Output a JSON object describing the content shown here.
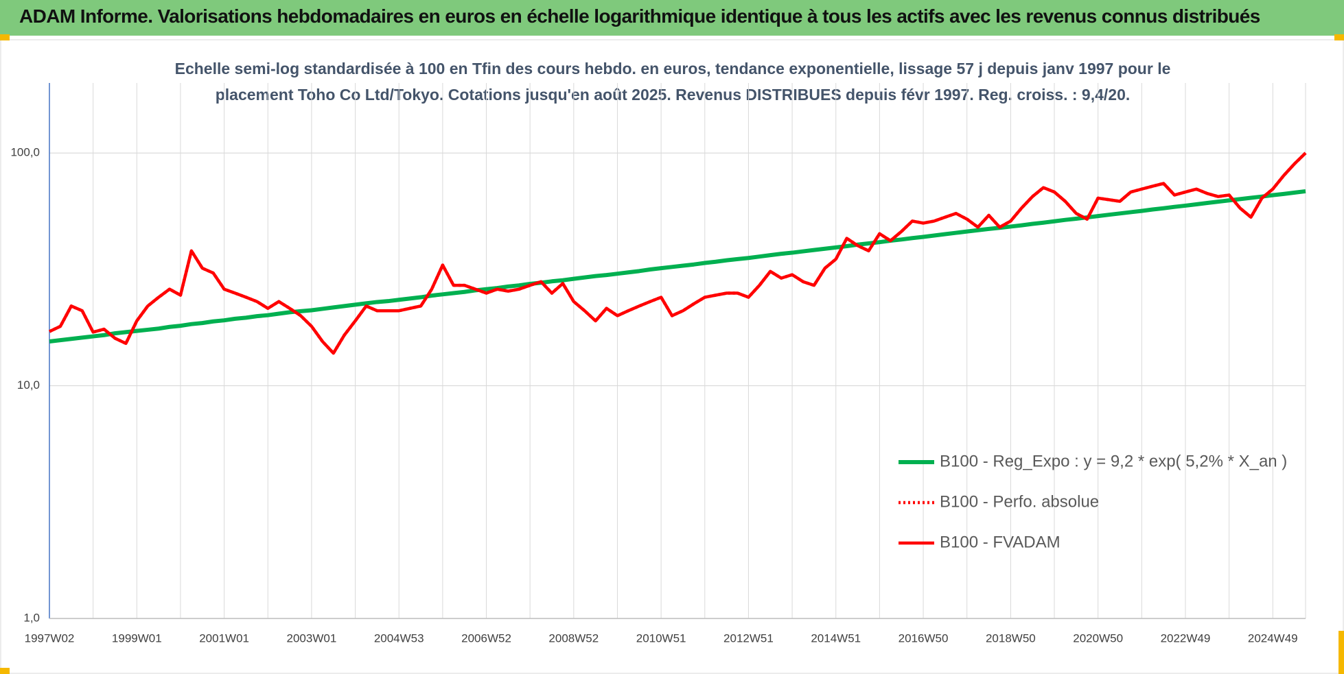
{
  "header": {
    "title": "ADAM Informe. Valorisations hebdomadaires en euros en échelle logarithmique identique à tous les actifs avec les revenus connus distribués"
  },
  "chart_data": {
    "type": "line",
    "subtitle": [
      "Echelle semi-log standardisée à 100 en Tfin des cours hebdo. en euros, tendance exponentielle, lissage 57 j depuis janv 1997 pour le",
      "placement Toho Co Ltd/Tokyo. Cotations jusqu'en août 2025. Revenus DISTRIBUES depuis févr 1997. Reg. croiss. : 9,4/20."
    ],
    "categories": [
      "1997W02",
      null,
      null,
      null,
      null,
      null,
      null,
      null,
      "1999W01",
      null,
      null,
      null,
      null,
      null,
      null,
      null,
      "2001W01",
      null,
      null,
      null,
      null,
      null,
      null,
      null,
      "2003W01",
      null,
      null,
      null,
      null,
      null,
      null,
      null,
      "2004W53",
      null,
      null,
      null,
      null,
      null,
      null,
      null,
      "2006W52",
      null,
      null,
      null,
      null,
      null,
      null,
      null,
      "2008W52",
      null,
      null,
      null,
      null,
      null,
      null,
      null,
      "2010W51",
      null,
      null,
      null,
      null,
      null,
      null,
      null,
      "2012W51",
      null,
      null,
      null,
      null,
      null,
      null,
      null,
      "2014W51",
      null,
      null,
      null,
      null,
      null,
      null,
      null,
      "2016W50",
      null,
      null,
      null,
      null,
      null,
      null,
      null,
      "2018W50",
      null,
      null,
      null,
      null,
      null,
      null,
      null,
      "2020W50",
      null,
      null,
      null,
      null,
      null,
      null,
      null,
      "2022W49",
      null,
      null,
      null,
      null,
      null,
      null,
      null,
      "2024W49",
      null,
      null,
      null
    ],
    "series": [
      {
        "name": "B100 - Reg_Expo : y = 9,2 * exp( 5,2% *  X_an )",
        "color": "#00b050",
        "dash": "solid",
        "values": [
          15.5,
          15.7,
          15.9,
          16.1,
          16.3,
          16.5,
          16.8,
          17.0,
          17.2,
          17.4,
          17.6,
          17.9,
          18.1,
          18.4,
          18.6,
          18.9,
          19.1,
          19.4,
          19.6,
          19.9,
          20.1,
          20.4,
          20.7,
          20.9,
          21.1,
          21.4,
          21.7,
          22.0,
          22.3,
          22.6,
          22.9,
          23.1,
          23.4,
          23.7,
          24.0,
          24.4,
          24.7,
          25.0,
          25.3,
          25.7,
          26.0,
          26.3,
          26.7,
          27.0,
          27.4,
          27.7,
          28.1,
          28.4,
          28.8,
          29.2,
          29.6,
          29.9,
          30.3,
          30.7,
          31.1,
          31.6,
          32.0,
          32.4,
          32.8,
          33.2,
          33.7,
          34.1,
          34.6,
          35.0,
          35.4,
          35.9,
          36.4,
          36.9,
          37.3,
          37.8,
          38.3,
          38.8,
          39.3,
          39.8,
          40.4,
          40.9,
          41.4,
          42.0,
          42.5,
          43.1,
          43.6,
          44.2,
          44.8,
          45.4,
          46.0,
          46.6,
          47.2,
          47.7,
          48.3,
          48.9,
          49.6,
          50.2,
          50.9,
          51.6,
          52.2,
          52.9,
          53.6,
          54.3,
          55.0,
          55.7,
          56.4,
          57.2,
          57.9,
          58.7,
          59.4,
          60.2,
          61.0,
          61.8,
          62.6,
          63.4,
          64.2,
          65.0,
          65.9,
          66.7,
          67.6,
          68.5
        ]
      },
      {
        "name": "B100 - Perfo. absolue",
        "color": "#ff0000",
        "dash": "dotted",
        "values": [
          17.1,
          18,
          22,
          21,
          17,
          17.5,
          16,
          15.2,
          19,
          22,
          24,
          26,
          24.5,
          38,
          32,
          30.5,
          26,
          25,
          24,
          23,
          21.5,
          23,
          21.5,
          20,
          18,
          15.5,
          13.8,
          16.5,
          19,
          22,
          21,
          21,
          21,
          21.5,
          22,
          26,
          33,
          27,
          27,
          26,
          25,
          26,
          25.5,
          26,
          27,
          28,
          25,
          27.5,
          23,
          21,
          19,
          21.5,
          20,
          21,
          22,
          23,
          24,
          20,
          21,
          22.5,
          24,
          24.5,
          25,
          25,
          24,
          27,
          31,
          29,
          30,
          28,
          27,
          32,
          35,
          43,
          40,
          38,
          45,
          42,
          46,
          51,
          50,
          51,
          53,
          55,
          52,
          48,
          54,
          48,
          51,
          58,
          65,
          71,
          68,
          62,
          55,
          52,
          64,
          63,
          62,
          68,
          70,
          72,
          74,
          66,
          68,
          70,
          67,
          65,
          66,
          58,
          53,
          64,
          70,
          80,
          90,
          100
        ]
      },
      {
        "name": "B100 - FVADAM",
        "color": "#ff0000",
        "dash": "solid",
        "values": [
          17.1,
          18,
          22,
          21,
          17,
          17.5,
          16,
          15.2,
          19,
          22,
          24,
          26,
          24.5,
          38,
          32,
          30.5,
          26,
          25,
          24,
          23,
          21.5,
          23,
          21.5,
          20,
          18,
          15.5,
          13.8,
          16.5,
          19,
          22,
          21,
          21,
          21,
          21.5,
          22,
          26,
          33,
          27,
          27,
          26,
          25,
          26,
          25.5,
          26,
          27,
          28,
          25,
          27.5,
          23,
          21,
          19,
          21.5,
          20,
          21,
          22,
          23,
          24,
          20,
          21,
          22.5,
          24,
          24.5,
          25,
          25,
          24,
          27,
          31,
          29,
          30,
          28,
          27,
          32,
          35,
          43,
          40,
          38,
          45,
          42,
          46,
          51,
          50,
          51,
          53,
          55,
          52,
          48,
          54,
          48,
          51,
          58,
          65,
          71,
          68,
          62,
          55,
          52,
          64,
          63,
          62,
          68,
          70,
          72,
          74,
          66,
          68,
          70,
          67,
          65,
          66,
          58,
          53,
          64,
          70,
          80,
          90,
          100
        ]
      }
    ],
    "ylim": [
      1,
      200
    ],
    "yticks": [
      {
        "value": 1,
        "label": "1,0"
      },
      {
        "value": 10,
        "label": "10,0"
      },
      {
        "value": 100,
        "label": "100,0"
      }
    ],
    "log_scale": true,
    "grid": true,
    "legend": "right"
  }
}
